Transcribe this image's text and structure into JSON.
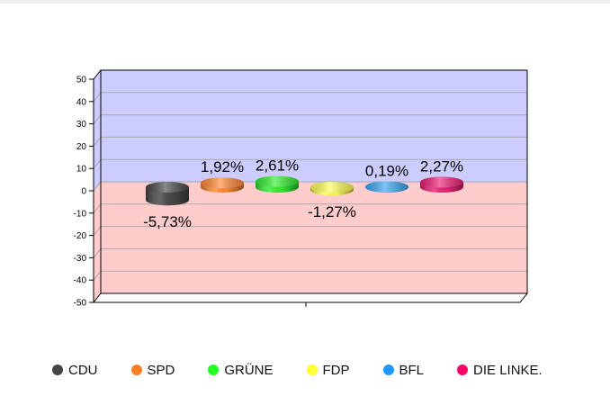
{
  "chart_data": {
    "type": "bar",
    "style": "3d-cylinder",
    "categories": [
      "CDU",
      "SPD",
      "GRÜNE",
      "FDP",
      "BFL",
      "DIE LINKE."
    ],
    "values": [
      -5.73,
      1.92,
      2.61,
      -1.27,
      0.19,
      2.27
    ],
    "value_labels": [
      "-5,73%",
      "1,92%",
      "2,61%",
      "-1,27%",
      "0,19%",
      "2,27%"
    ],
    "colors": [
      "#4a4a4a",
      "#ff8a33",
      "#33ee33",
      "#ffff55",
      "#3aa6f0",
      "#ee2277"
    ],
    "ylim": [
      -50,
      50
    ],
    "y_ticks": [
      50,
      40,
      30,
      20,
      10,
      0,
      -10,
      -20,
      -30,
      -40,
      -50
    ],
    "positive_bg": "#ccccff",
    "negative_bg": "#ffcccc",
    "grid": true,
    "legend_position": "bottom",
    "title": "",
    "xlabel": "",
    "ylabel": ""
  },
  "legend": {
    "items": [
      {
        "label": "CDU",
        "color": "#444444"
      },
      {
        "label": "SPD",
        "color": "#ff7f27"
      },
      {
        "label": "GRÜNE",
        "color": "#22ff22"
      },
      {
        "label": "FDP",
        "color": "#ffff33"
      },
      {
        "label": "BFL",
        "color": "#2299ff"
      },
      {
        "label": "DIE LINKE.",
        "color": "#ff0066"
      }
    ]
  }
}
